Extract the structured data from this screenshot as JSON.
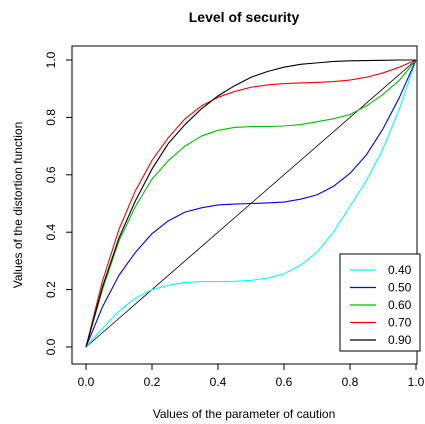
{
  "chart_data": {
    "type": "line",
    "title": "Level of security",
    "xlabel": "Values of the parameter of caution",
    "ylabel": "Values of the distortion function",
    "xlim": [
      0,
      1
    ],
    "ylim": [
      0,
      1
    ],
    "x_ticks": [
      "0.0",
      "0.2",
      "0.4",
      "0.6",
      "0.8",
      "1.0"
    ],
    "y_ticks": [
      "0.0",
      "0.2",
      "0.4",
      "0.6",
      "0.8",
      "1.0"
    ],
    "grid": false,
    "legend_position": "bottom-right",
    "reference_line": {
      "x": [
        0,
        1
      ],
      "y": [
        0,
        1
      ],
      "color": "#000000"
    },
    "series": [
      {
        "name": "0.40",
        "color": "#00FFFF",
        "x": [
          0,
          0.05,
          0.1,
          0.15,
          0.2,
          0.25,
          0.3,
          0.35,
          0.4,
          0.45,
          0.5,
          0.55,
          0.6,
          0.65,
          0.7,
          0.75,
          0.8,
          0.85,
          0.9,
          0.95,
          1.0
        ],
        "y": [
          0,
          0.065,
          0.125,
          0.17,
          0.2,
          0.215,
          0.225,
          0.228,
          0.228,
          0.229,
          0.232,
          0.24,
          0.255,
          0.285,
          0.33,
          0.4,
          0.49,
          0.58,
          0.69,
          0.83,
          1.0
        ]
      },
      {
        "name": "0.50",
        "color": "#0000FF",
        "x": [
          0,
          0.05,
          0.1,
          0.15,
          0.2,
          0.25,
          0.3,
          0.35,
          0.4,
          0.45,
          0.5,
          0.55,
          0.6,
          0.65,
          0.7,
          0.75,
          0.8,
          0.85,
          0.9,
          0.95,
          1.0
        ],
        "y": [
          0,
          0.14,
          0.25,
          0.33,
          0.395,
          0.44,
          0.47,
          0.485,
          0.495,
          0.498,
          0.5,
          0.502,
          0.505,
          0.515,
          0.53,
          0.56,
          0.605,
          0.67,
          0.76,
          0.87,
          1.0
        ]
      },
      {
        "name": "0.60",
        "color": "#00C000",
        "x": [
          0,
          0.05,
          0.1,
          0.15,
          0.2,
          0.25,
          0.3,
          0.35,
          0.4,
          0.45,
          0.5,
          0.55,
          0.6,
          0.65,
          0.7,
          0.75,
          0.8,
          0.85,
          0.9,
          0.95,
          1.0
        ],
        "y": [
          0,
          0.2,
          0.37,
          0.49,
          0.585,
          0.65,
          0.7,
          0.735,
          0.755,
          0.765,
          0.768,
          0.768,
          0.77,
          0.775,
          0.785,
          0.795,
          0.81,
          0.84,
          0.88,
          0.93,
          1.0
        ]
      },
      {
        "name": "0.70",
        "color": "#FF0000",
        "x": [
          0,
          0.05,
          0.1,
          0.15,
          0.2,
          0.25,
          0.3,
          0.35,
          0.4,
          0.45,
          0.5,
          0.55,
          0.6,
          0.65,
          0.7,
          0.75,
          0.8,
          0.85,
          0.9,
          0.95,
          1.0
        ],
        "y": [
          0,
          0.23,
          0.41,
          0.545,
          0.65,
          0.73,
          0.795,
          0.84,
          0.87,
          0.89,
          0.905,
          0.913,
          0.918,
          0.92,
          0.922,
          0.925,
          0.93,
          0.94,
          0.955,
          0.975,
          1.0
        ]
      },
      {
        "name": "0.90",
        "color": "#000000",
        "x": [
          0,
          0.05,
          0.1,
          0.15,
          0.2,
          0.25,
          0.3,
          0.35,
          0.4,
          0.45,
          0.5,
          0.55,
          0.6,
          0.65,
          0.7,
          0.75,
          0.8,
          0.85,
          0.9,
          0.95,
          1.0
        ],
        "y": [
          0,
          0.21,
          0.38,
          0.51,
          0.62,
          0.71,
          0.775,
          0.83,
          0.875,
          0.91,
          0.94,
          0.96,
          0.975,
          0.985,
          0.99,
          0.995,
          0.997,
          0.998,
          0.999,
          1.0,
          1.0
        ]
      }
    ]
  }
}
